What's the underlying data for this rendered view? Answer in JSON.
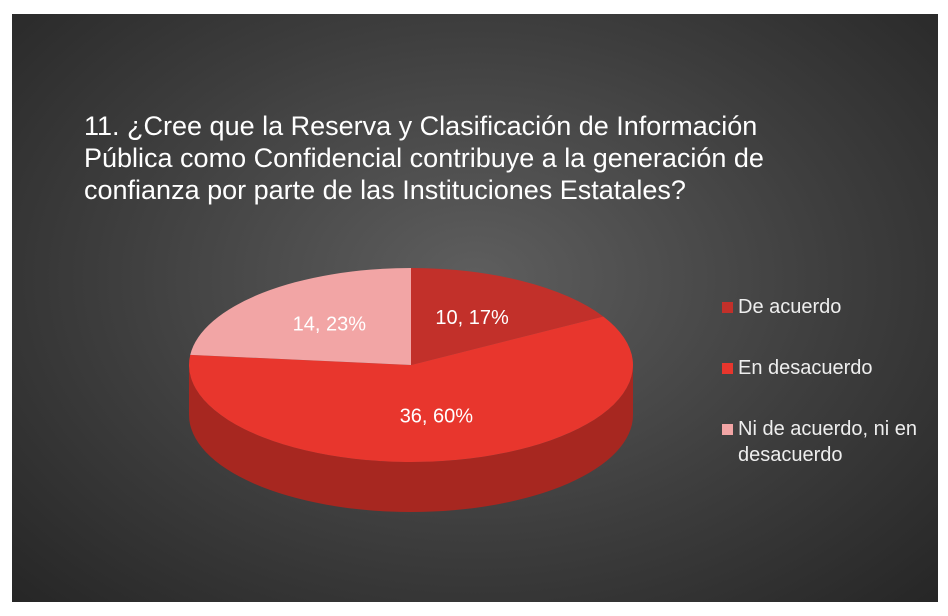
{
  "chart_data": {
    "type": "pie",
    "title": "11. ¿Cree que la Reserva y Clasificación de Información Pública como Confidencial contribuye a la generación de confianza por parte de las Instituciones Estatales?",
    "categories": [
      "De acuerdo",
      "En desacuerdo",
      "Ni de acuerdo, ni en desacuerdo"
    ],
    "values": [
      10,
      36,
      14
    ],
    "value_labels": [
      "10, 17%",
      "36, 60%",
      "14, 23%"
    ],
    "colors": [
      "#c2302a",
      "#e8362d",
      "#f2a5a5"
    ],
    "legend": "right"
  }
}
